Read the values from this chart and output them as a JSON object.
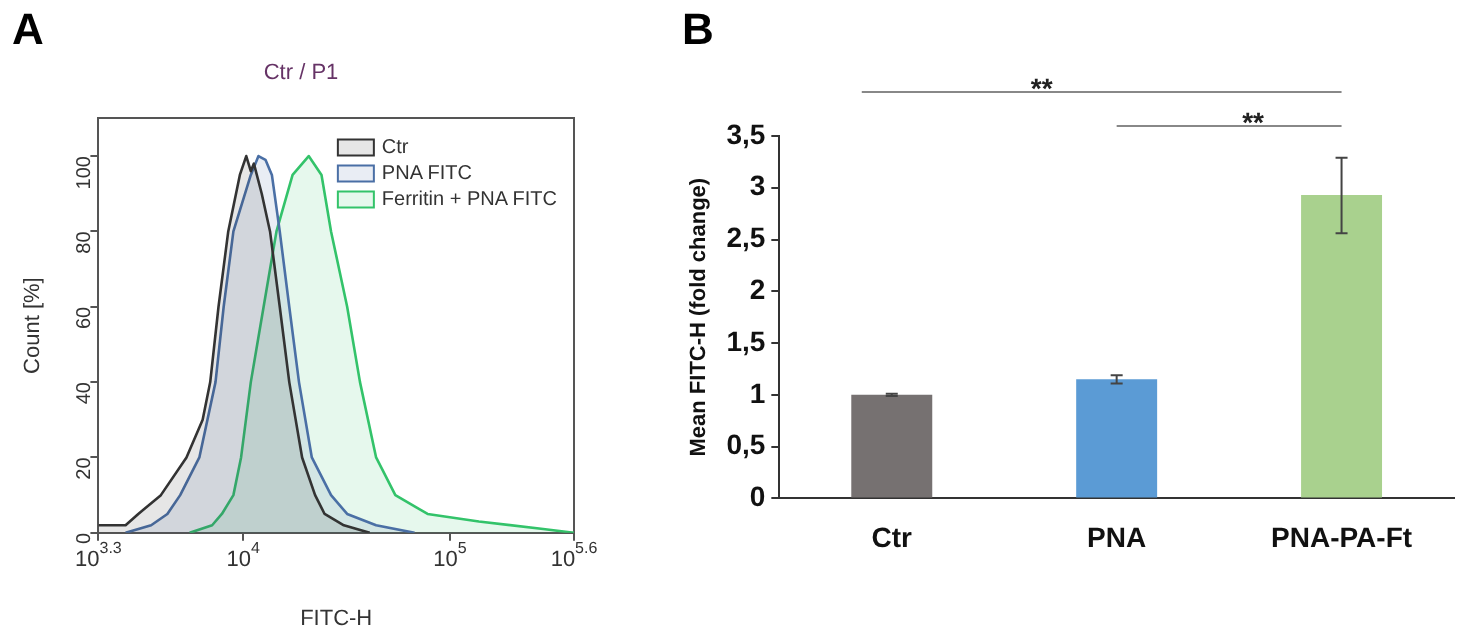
{
  "chart_data": [
    {
      "type": "area",
      "title": "Ctr / P1",
      "xlabel": "FITC-H",
      "ylabel": "Count [%]",
      "annotations": [
        "A"
      ],
      "log": "x",
      "legend": "top right",
      "grid": false,
      "xlim": [
        1995,
        398100
      ],
      "xticks": [
        {
          "value": 1995,
          "label": "10$^{3.3}$"
        },
        {
          "value": 10000,
          "label": "10$^{4}$"
        },
        {
          "value": 100000,
          "label": "10$^{5}$"
        },
        {
          "value": 398100,
          "label": "10$^{5.6}$"
        }
      ],
      "ylim": [
        0,
        110
      ],
      "yticks": [
        0,
        20,
        40,
        60,
        80,
        100
      ],
      "series": [
        {
          "name": "Ctr",
          "color": "#333333",
          "x": [
            1995,
            2700,
            3110,
            4000,
            5320,
            6370,
            6930,
            7600,
            8470,
            9640,
            10350,
            10890,
            11270,
            12300,
            13490,
            15030,
            16710,
            19280,
            22280,
            24770,
            30690,
            40930
          ],
          "values": [
            2,
            2,
            5,
            10,
            20,
            30,
            40,
            60,
            80,
            95,
            100,
            96,
            98,
            90,
            80,
            60,
            40,
            20,
            10,
            5,
            2,
            0
          ]
        },
        {
          "name": "PNA FITC",
          "color": "#4a6fa5",
          "x": [
            2700,
            3590,
            4300,
            4960,
            6140,
            7350,
            8050,
            8970,
            10890,
            11860,
            12820,
            13770,
            15030,
            16710,
            18620,
            21480,
            26610,
            31840,
            43950,
            67450
          ],
          "values": [
            0,
            2,
            5,
            10,
            20,
            40,
            60,
            80,
            95,
            100,
            99,
            95,
            80,
            60,
            40,
            20,
            10,
            5,
            2,
            0
          ]
        },
        {
          "name": "Ferritin + PNA FITC",
          "color": "#33c36a",
          "x": [
            5510,
            7080,
            7890,
            8970,
            9770,
            10890,
            12560,
            14490,
            17340,
            20750,
            23930,
            26610,
            31840,
            36730,
            43950,
            54450,
            77980,
            138000,
            282500,
            398100
          ],
          "values": [
            0,
            2,
            5,
            10,
            20,
            40,
            60,
            80,
            95,
            100,
            95,
            80,
            60,
            40,
            20,
            10,
            5,
            3,
            1,
            0
          ]
        }
      ]
    },
    {
      "type": "bar",
      "ylabel": "Mean FITC-H (fold change)",
      "annotations": [
        "B",
        "**",
        "**"
      ],
      "grid": false,
      "categories": [
        "Ctr",
        "PNA",
        "PNA-PA-Ft"
      ],
      "ylim": [
        0,
        3.5
      ],
      "yticks": [
        0,
        {
          "value": 0.5,
          "label": "0,5"
        },
        1,
        {
          "value": 1.5,
          "label": "1,5"
        },
        2,
        {
          "value": 2.5,
          "label": "2,5"
        },
        3,
        {
          "value": 3.5,
          "label": "3,5"
        }
      ],
      "values": [
        1.0,
        1.15,
        2.93
      ],
      "colors": [
        "#767171",
        "#5b9bd5",
        "#a9d18e"
      ],
      "errors": [
        0.01,
        0.04,
        [
          2.56,
          3.29
        ]
      ]
    }
  ]
}
